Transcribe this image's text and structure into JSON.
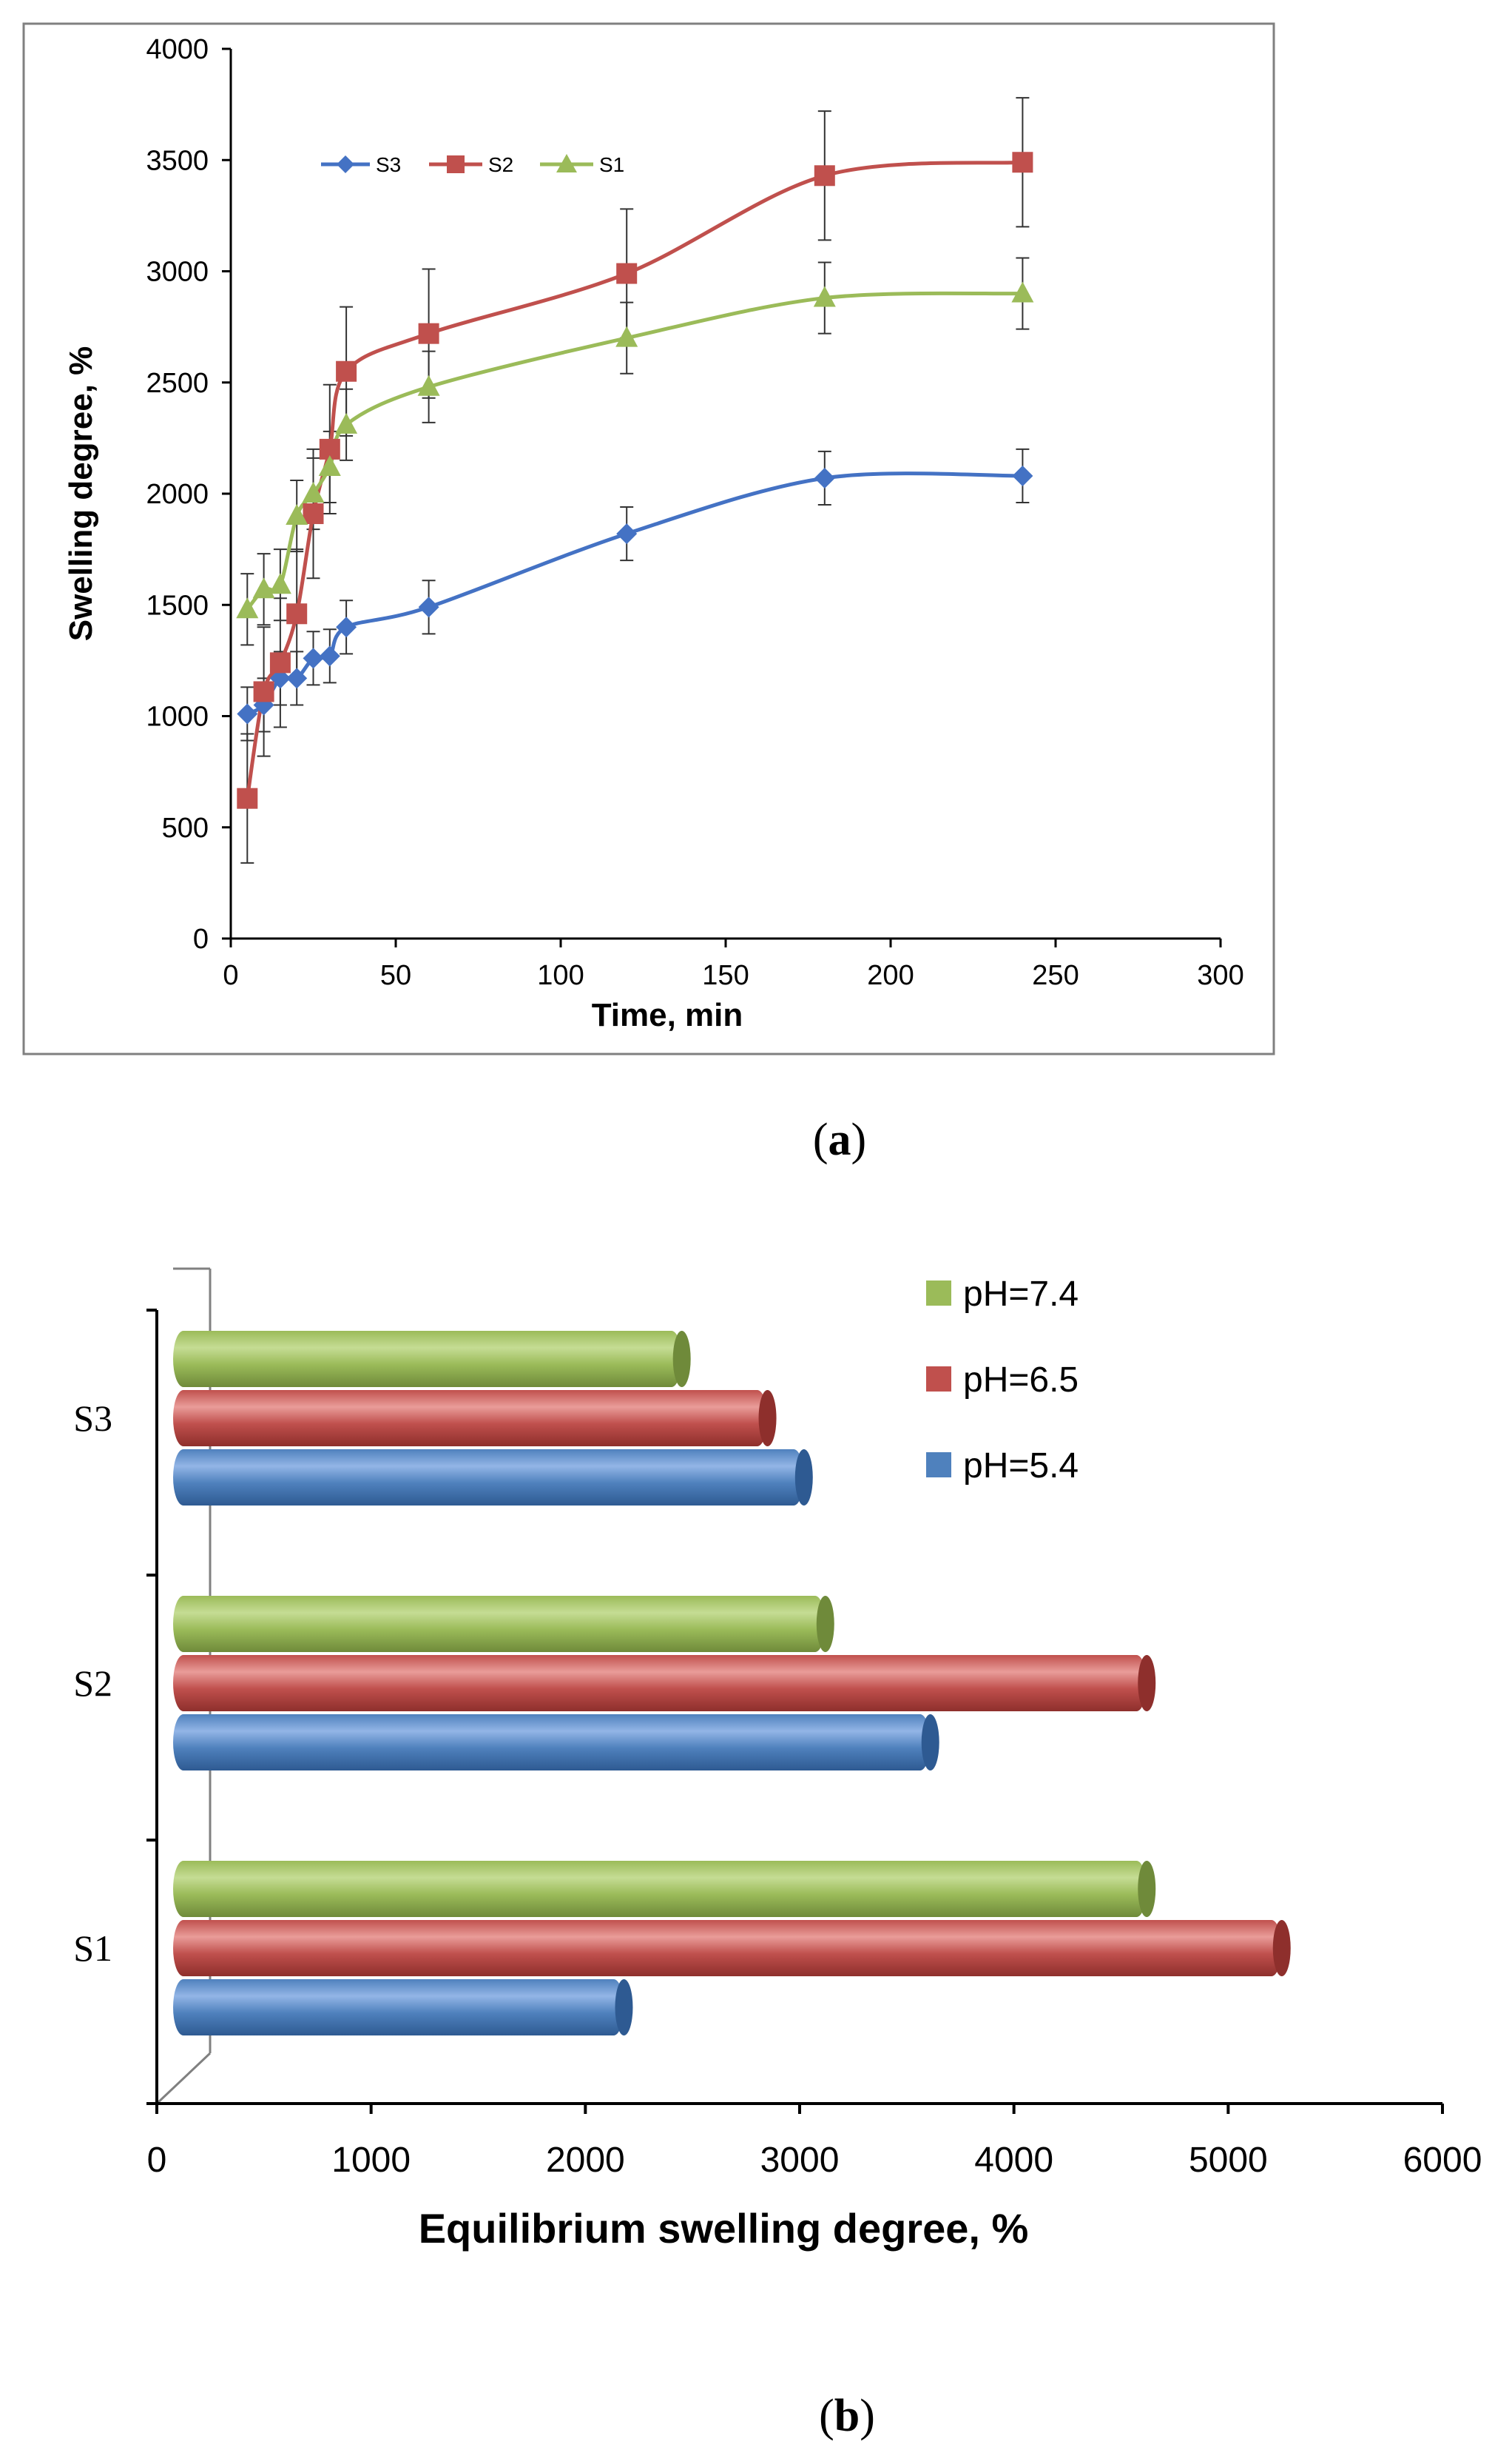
{
  "panel_a_label": {
    "open": "(",
    "letter": "a",
    "close": ")"
  },
  "panel_b_label": {
    "open": "(",
    "letter": "b",
    "close": ")"
  },
  "colors": {
    "S3": "#4472c4",
    "S2": "#c0504d",
    "S1": "#9bbb59",
    "pH_7_4": "#9bbb59",
    "pH_6_5": "#c0504d",
    "pH_5_4": "#4f81bd",
    "axis": "#000000",
    "frame": "#808080"
  },
  "chart_data": [
    {
      "type": "line",
      "title": "",
      "xlabel": "Time, min",
      "ylabel": "Swelling degree, %",
      "xlim": [
        0,
        300
      ],
      "ylim": [
        0,
        4000
      ],
      "xticks": [
        "0",
        "50",
        "100",
        "150",
        "200",
        "250",
        "300"
      ],
      "yticks": [
        "0",
        "500",
        "1000",
        "1500",
        "2000",
        "2500",
        "3000",
        "3500",
        "4000"
      ],
      "grid": false,
      "legend_position": "top-left",
      "x": [
        5,
        10,
        15,
        20,
        25,
        30,
        35,
        60,
        120,
        180,
        240
      ],
      "series": [
        {
          "name": "S3",
          "marker": "diamond",
          "values": [
            1010,
            1050,
            1170,
            1170,
            1260,
            1270,
            1400,
            1490,
            1820,
            2070,
            2080
          ],
          "errors": [
            120,
            120,
            120,
            120,
            120,
            120,
            120,
            120,
            120,
            120,
            120
          ]
        },
        {
          "name": "S2",
          "marker": "square",
          "values": [
            630,
            1110,
            1240,
            1460,
            1910,
            2200,
            2550,
            2720,
            2990,
            3430,
            3490
          ],
          "errors": [
            290,
            290,
            290,
            290,
            290,
            290,
            290,
            290,
            290,
            290,
            290
          ]
        },
        {
          "name": "S1",
          "marker": "triangle",
          "values": [
            1480,
            1570,
            1590,
            1900,
            2000,
            2120,
            2310,
            2480,
            2700,
            2880,
            2900
          ],
          "errors": [
            160,
            160,
            160,
            160,
            160,
            160,
            160,
            160,
            160,
            160,
            160
          ]
        }
      ]
    },
    {
      "type": "bar",
      "orientation": "horizontal",
      "title": "",
      "xlabel": "Equilibrium  swelling degree, %",
      "ylabel": "",
      "xlim": [
        0,
        6000
      ],
      "xticks": [
        "0",
        "1000",
        "2000",
        "3000",
        "4000",
        "5000",
        "6000"
      ],
      "categories": [
        "S3",
        "S2",
        "S1"
      ],
      "legend_position": "top-right",
      "series": [
        {
          "name": "pH=7.4",
          "values": [
            2450,
            3120,
            4620
          ]
        },
        {
          "name": "pH=6.5",
          "values": [
            2850,
            4620,
            5250
          ]
        },
        {
          "name": "pH=5.4",
          "values": [
            3020,
            3610,
            2180
          ]
        }
      ]
    }
  ]
}
